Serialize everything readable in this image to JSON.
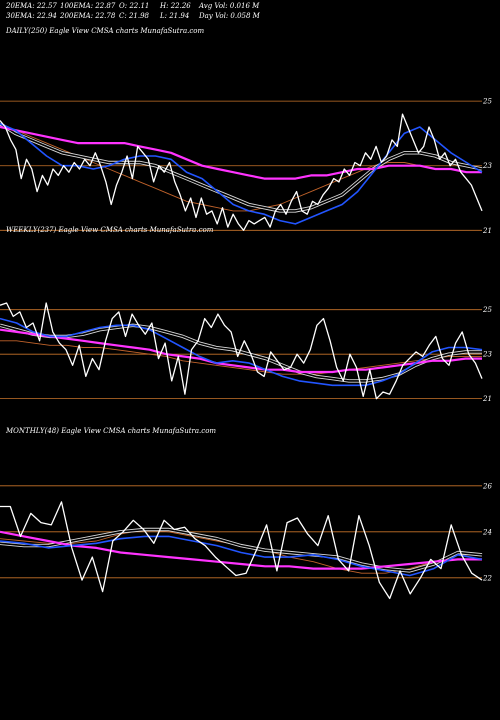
{
  "header": {
    "ema20": "20EMA: 22.57",
    "ema100": "100EMA: 22.87",
    "open": "O: 22.11",
    "high": "H: 22.26",
    "avgvol": "Avg Vol: 0.016  M",
    "ema30": "30EMA: 22.94",
    "ema200": "200EMA: 22.78",
    "close": "C: 21.98",
    "low": "L: 21.94",
    "dayvol": "Day Vol: 0.058  M"
  },
  "colors": {
    "background": "#000000",
    "gridline": "#c8742a",
    "price": "#ffffff",
    "ema_fast": "#2255ff",
    "ema_slow": "#ff33ff",
    "ema_long": "#c0622a",
    "band": "#d8d8d8"
  },
  "chart_data": [
    {
      "type": "line",
      "title": "DAILY(250) Eagle   View  CMSA charts MunafaSutra.com",
      "y_ticks": [
        {
          "value": 25,
          "label": "25"
        },
        {
          "value": 23,
          "label": "23"
        },
        {
          "value": 21,
          "label": "21"
        }
      ],
      "ylim": [
        20.7,
        25.5
      ],
      "grid": true,
      "series": [
        {
          "role": "price",
          "values": [
            24.4,
            24.2,
            23.8,
            23.5,
            22.6,
            23.2,
            22.9,
            22.2,
            22.7,
            22.4,
            22.9,
            22.7,
            23.0,
            22.8,
            23.1,
            22.9,
            23.2,
            23.0,
            23.4,
            23.0,
            22.5,
            21.8,
            22.4,
            22.8,
            23.3,
            22.6,
            23.6,
            23.4,
            23.2,
            22.5,
            23.0,
            22.8,
            23.1,
            22.5,
            22.1,
            21.6,
            22.0,
            21.4,
            22.0,
            21.5,
            21.6,
            21.2,
            21.7,
            21.1,
            21.5,
            21.2,
            21.0,
            21.3,
            21.2,
            21.3,
            21.4,
            21.1,
            21.6,
            21.8,
            21.5,
            21.9,
            22.2,
            21.6,
            21.5,
            21.9,
            21.8,
            22.1,
            22.3,
            22.6,
            22.5,
            22.9,
            22.7,
            23.1,
            23.0,
            23.4,
            23.2,
            23.6,
            23.1,
            23.3,
            23.8,
            23.6,
            24.6,
            24.2,
            23.8,
            23.4,
            23.6,
            24.2,
            23.8,
            23.2,
            23.4,
            23.0,
            23.2,
            22.8,
            22.6,
            22.4,
            22.0,
            21.6
          ]
        },
        {
          "role": "ema-fast",
          "values": [
            24.3,
            24.1,
            23.7,
            23.3,
            23.0,
            23.0,
            22.9,
            23.0,
            23.2,
            23.3,
            23.3,
            23.2,
            22.8,
            22.6,
            22.2,
            21.8,
            21.6,
            21.5,
            21.3,
            21.2,
            21.4,
            21.6,
            21.8,
            22.2,
            22.8,
            23.4,
            24.0,
            24.2,
            23.8,
            23.4,
            23.1,
            22.8
          ]
        },
        {
          "role": "ema-slow",
          "values": [
            24.3,
            24.0,
            23.8,
            23.6,
            23.4,
            23.3,
            23.2,
            23.1,
            23.1,
            23.1,
            23.0,
            22.8,
            22.6,
            22.4,
            22.2,
            22.0,
            21.8,
            21.7,
            21.6,
            21.6,
            21.7,
            21.9,
            22.1,
            22.5,
            22.9,
            23.2,
            23.4,
            23.4,
            23.3,
            23.1,
            23.0,
            22.9
          ]
        },
        {
          "role": "ema-long",
          "values": [
            24.3,
            24.1,
            23.9,
            23.7,
            23.5,
            23.3,
            23.1,
            22.9,
            22.7,
            22.5,
            22.3,
            22.1,
            21.9,
            21.8,
            21.7,
            21.6,
            21.6,
            21.7,
            21.8,
            22.0,
            22.2,
            22.4,
            22.6,
            22.8,
            23.0,
            23.1,
            23.1,
            23.0,
            22.9,
            22.9,
            22.8,
            22.8
          ]
        },
        {
          "role": "ema-200",
          "values": [
            24.2,
            24.1,
            24.0,
            23.9,
            23.8,
            23.7,
            23.7,
            23.7,
            23.7,
            23.6,
            23.5,
            23.4,
            23.2,
            23.0,
            22.9,
            22.8,
            22.7,
            22.6,
            22.6,
            22.6,
            22.7,
            22.7,
            22.8,
            22.9,
            22.9,
            23.0,
            23.0,
            23.0,
            22.9,
            22.9,
            22.8,
            22.8
          ]
        }
      ]
    },
    {
      "type": "line",
      "title": "WEEKLY(237) Eagle   View  CMSA charts MunafaSutra.com",
      "y_ticks": [
        {
          "value": 25,
          "label": "25"
        },
        {
          "value": 23,
          "label": "23"
        },
        {
          "value": 21,
          "label": "21"
        }
      ],
      "ylim": [
        20.4,
        26.2
      ],
      "grid": true,
      "series": [
        {
          "role": "price",
          "values": [
            25.2,
            25.3,
            24.7,
            24.9,
            24.2,
            24.4,
            23.6,
            25.3,
            24.0,
            23.5,
            23.2,
            22.5,
            23.4,
            22.0,
            22.8,
            22.3,
            23.6,
            24.6,
            24.9,
            23.8,
            24.8,
            24.3,
            23.9,
            24.4,
            22.8,
            23.5,
            21.8,
            22.9,
            21.2,
            23.2,
            23.6,
            24.6,
            24.2,
            24.8,
            24.3,
            24.0,
            22.9,
            23.6,
            23.0,
            22.2,
            22.0,
            23.1,
            22.7,
            22.3,
            22.4,
            23.0,
            22.6,
            23.2,
            24.3,
            24.6,
            23.6,
            22.4,
            21.8,
            23.0,
            22.4,
            21.1,
            22.3,
            21.0,
            21.3,
            21.2,
            21.8,
            22.5,
            22.8,
            23.1,
            22.9,
            23.4,
            23.8,
            22.8,
            22.5,
            23.5,
            24.0,
            23.0,
            22.6,
            21.9
          ]
        },
        {
          "role": "ema-fast",
          "values": [
            24.6,
            24.4,
            24.0,
            23.8,
            23.8,
            24.0,
            24.2,
            24.3,
            24.3,
            24.1,
            23.7,
            23.3,
            22.9,
            22.6,
            22.7,
            22.6,
            22.3,
            22.0,
            21.8,
            21.7,
            21.6,
            21.6,
            21.6,
            21.8,
            22.1,
            22.6,
            23.1,
            23.3,
            23.3,
            23.2
          ]
        },
        {
          "role": "ema-slow",
          "values": [
            24.3,
            24.1,
            23.9,
            23.8,
            23.8,
            23.9,
            24.1,
            24.2,
            24.3,
            24.2,
            24.0,
            23.8,
            23.5,
            23.3,
            23.2,
            23.0,
            22.8,
            22.5,
            22.2,
            22.0,
            21.9,
            21.8,
            21.8,
            21.9,
            22.1,
            22.5,
            22.8,
            23.0,
            23.1,
            23.1
          ]
        },
        {
          "role": "ema-long",
          "values": [
            23.6,
            23.6,
            23.5,
            23.4,
            23.4,
            23.3,
            23.3,
            23.2,
            23.1,
            23.0,
            22.9,
            22.7,
            22.6,
            22.5,
            22.4,
            22.3,
            22.2,
            22.1,
            22.1,
            22.1,
            22.2,
            22.3,
            22.4,
            22.5,
            22.6,
            22.7,
            22.8,
            22.9,
            22.9,
            22.9
          ]
        },
        {
          "role": "ema-200",
          "values": [
            24.1,
            24.0,
            23.9,
            23.8,
            23.7,
            23.6,
            23.5,
            23.4,
            23.3,
            23.2,
            23.0,
            22.9,
            22.8,
            22.6,
            22.5,
            22.4,
            22.3,
            22.3,
            22.2,
            22.2,
            22.2,
            22.3,
            22.3,
            22.4,
            22.5,
            22.6,
            22.7,
            22.7,
            22.8,
            22.8
          ]
        }
      ]
    },
    {
      "type": "line",
      "title": "MONTHLY(48) Eagle   View  CMSA charts MunafaSutra.com",
      "y_ticks": [
        {
          "value": 26,
          "label": "26"
        },
        {
          "value": 24,
          "label": "24"
        },
        {
          "value": 22,
          "label": "22"
        }
      ],
      "ylim": [
        20.6,
        26.6
      ],
      "grid": true,
      "series": [
        {
          "role": "price",
          "values": [
            25.1,
            25.1,
            23.8,
            24.8,
            24.4,
            24.3,
            25.3,
            23.3,
            21.9,
            22.9,
            21.4,
            23.6,
            24.0,
            24.5,
            24.1,
            23.5,
            24.5,
            24.1,
            24.2,
            23.7,
            23.4,
            22.9,
            22.5,
            22.1,
            22.2,
            23.2,
            24.3,
            22.3,
            24.4,
            24.6,
            23.9,
            23.4,
            24.7,
            22.8,
            22.3,
            24.7,
            23.4,
            21.8,
            21.1,
            22.3,
            21.3,
            22.0,
            22.8,
            22.4,
            24.3,
            23.0,
            22.2,
            21.9
          ]
        },
        {
          "role": "ema-fast",
          "values": [
            23.6,
            23.5,
            23.3,
            23.4,
            23.5,
            23.7,
            23.8,
            23.8,
            23.6,
            23.4,
            23.1,
            22.9,
            22.9,
            23.0,
            22.8,
            22.5,
            22.3,
            22.1,
            22.4,
            23.0,
            22.8
          ]
        },
        {
          "role": "ema-slow",
          "values": [
            23.5,
            23.4,
            23.4,
            23.6,
            23.8,
            24.0,
            24.1,
            24.1,
            23.9,
            23.7,
            23.4,
            23.2,
            23.1,
            23.0,
            22.9,
            22.6,
            22.4,
            22.3,
            22.6,
            23.1,
            23.0
          ]
        },
        {
          "role": "ema-long",
          "values": [
            23.7,
            23.6,
            23.5,
            23.5,
            23.6,
            23.9,
            24.1,
            24.0,
            23.8,
            23.6,
            23.4,
            23.2,
            22.9,
            22.7,
            22.4,
            22.2,
            22.2,
            22.4,
            22.7,
            23.0,
            23.0
          ]
        },
        {
          "role": "ema-200",
          "values": [
            24.0,
            23.8,
            23.6,
            23.4,
            23.3,
            23.1,
            23.0,
            22.9,
            22.8,
            22.7,
            22.6,
            22.5,
            22.5,
            22.4,
            22.4,
            22.4,
            22.5,
            22.6,
            22.7,
            22.8,
            22.8
          ]
        }
      ]
    }
  ]
}
